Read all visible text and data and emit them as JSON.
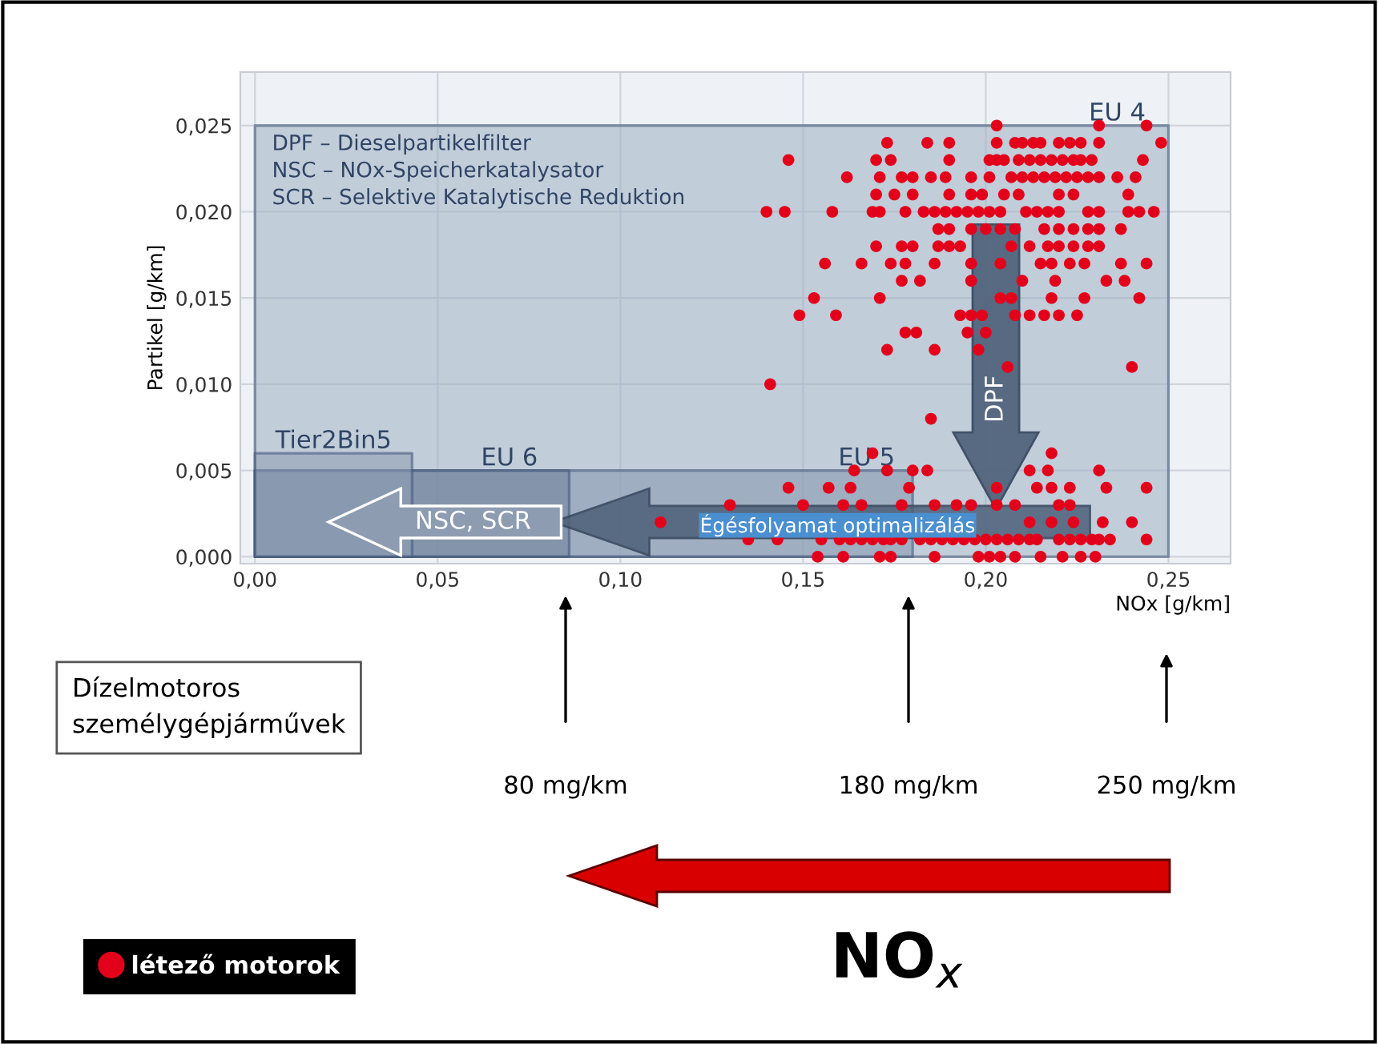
{
  "chart_data": {
    "type": "scatter",
    "xlabel": "NOx [g/km]",
    "ylabel": "Partikel [g/km]",
    "xlim": [
      -0.004,
      0.267
    ],
    "ylim": [
      -0.0004,
      0.0281
    ],
    "xticks": [
      {
        "value": 0,
        "label": "0,00"
      },
      {
        "value": 0.05,
        "label": "0,05"
      },
      {
        "value": 0.1,
        "label": "0,10"
      },
      {
        "value": 0.15,
        "label": "0,15"
      },
      {
        "value": 0.2,
        "label": "0,20"
      },
      {
        "value": 0.25,
        "label": "0,25"
      }
    ],
    "yticks": [
      {
        "value": 0,
        "label": "0,000"
      },
      {
        "value": 0.005,
        "label": "0,005"
      },
      {
        "value": 0.01,
        "label": "0,010"
      },
      {
        "value": 0.015,
        "label": "0,015"
      },
      {
        "value": 0.02,
        "label": "0,020"
      },
      {
        "value": 0.025,
        "label": "0,025"
      }
    ],
    "grid": true,
    "legend": "bottom left",
    "series": [
      {
        "type": "area",
        "name": "EU 4",
        "color": "#9fafc3",
        "x": [
          0,
          0.25
        ],
        "values": [
          0.025,
          0.025
        ]
      },
      {
        "type": "area",
        "name": "EU 5",
        "color": "#8596ad",
        "x": [
          0,
          0.18
        ],
        "values": [
          0.005,
          0.005
        ]
      },
      {
        "type": "area",
        "name": "EU 6",
        "color": "#6d7f98",
        "x": [
          0,
          0.086
        ],
        "values": [
          0.005,
          0.005
        ]
      },
      {
        "type": "area",
        "name": "Tier2Bin5",
        "color": "#8e9db3",
        "x": [
          0,
          0.043
        ],
        "values": [
          0.006,
          0.006
        ]
      },
      {
        "name": "létező motorok",
        "color": "#e3001b",
        "marker": "circle",
        "x": [
          0.203,
          0.231,
          0.244,
          0.173,
          0.184,
          0.19,
          0.203,
          0.208,
          0.21,
          0.213,
          0.215,
          0.22,
          0.223,
          0.226,
          0.231,
          0.248,
          0.146,
          0.17,
          0.174,
          0.19,
          0.201,
          0.203,
          0.205,
          0.209,
          0.212,
          0.215,
          0.218,
          0.221,
          0.224,
          0.226,
          0.229,
          0.243,
          0.162,
          0.171,
          0.177,
          0.18,
          0.185,
          0.189,
          0.196,
          0.201,
          0.207,
          0.21,
          0.213,
          0.216,
          0.219,
          0.222,
          0.225,
          0.228,
          0.231,
          0.236,
          0.241,
          0.17,
          0.175,
          0.18,
          0.19,
          0.196,
          0.199,
          0.205,
          0.209,
          0.22,
          0.224,
          0.239,
          0.14,
          0.145,
          0.158,
          0.169,
          0.171,
          0.178,
          0.183,
          0.186,
          0.189,
          0.192,
          0.195,
          0.198,
          0.201,
          0.204,
          0.211,
          0.214,
          0.217,
          0.22,
          0.228,
          0.231,
          0.239,
          0.242,
          0.246,
          0.187,
          0.19,
          0.196,
          0.2,
          0.204,
          0.208,
          0.216,
          0.22,
          0.224,
          0.228,
          0.231,
          0.237,
          0.17,
          0.177,
          0.18,
          0.187,
          0.19,
          0.193,
          0.207,
          0.212,
          0.217,
          0.22,
          0.224,
          0.228,
          0.231,
          0.156,
          0.166,
          0.174,
          0.178,
          0.186,
          0.196,
          0.204,
          0.215,
          0.218,
          0.223,
          0.227,
          0.237,
          0.244,
          0.177,
          0.182,
          0.196,
          0.21,
          0.219,
          0.233,
          0.238,
          0.153,
          0.171,
          0.204,
          0.207,
          0.218,
          0.227,
          0.242,
          0.149,
          0.159,
          0.193,
          0.196,
          0.199,
          0.208,
          0.212,
          0.216,
          0.22,
          0.225,
          0.178,
          0.181,
          0.195,
          0.2,
          0.173,
          0.186,
          0.198,
          0.206,
          0.24,
          0.141,
          0.185,
          0.169,
          0.218,
          0.164,
          0.173,
          0.18,
          0.184,
          0.212,
          0.217,
          0.231,
          0.146,
          0.157,
          0.163,
          0.179,
          0.203,
          0.214,
          0.218,
          0.223,
          0.233,
          0.244,
          0.13,
          0.15,
          0.161,
          0.166,
          0.177,
          0.186,
          0.192,
          0.196,
          0.203,
          0.208,
          0.22,
          0.223,
          0.111,
          0.212,
          0.218,
          0.224,
          0.232,
          0.24,
          0.135,
          0.143,
          0.155,
          0.16,
          0.163,
          0.166,
          0.169,
          0.172,
          0.174,
          0.177,
          0.182,
          0.185,
          0.188,
          0.191,
          0.194,
          0.197,
          0.2,
          0.203,
          0.206,
          0.209,
          0.212,
          0.214,
          0.22,
          0.223,
          0.226,
          0.229,
          0.231,
          0.234,
          0.244,
          0.154,
          0.161,
          0.171,
          0.174,
          0.186,
          0.198,
          0.201,
          0.204,
          0.208,
          0.215,
          0.221,
          0.226,
          0.23
        ],
        "values": [
          0.025,
          0.025,
          0.025,
          0.024,
          0.024,
          0.024,
          0.024,
          0.024,
          0.024,
          0.024,
          0.024,
          0.024,
          0.024,
          0.024,
          0.024,
          0.024,
          0.023,
          0.023,
          0.023,
          0.023,
          0.023,
          0.023,
          0.023,
          0.023,
          0.023,
          0.023,
          0.023,
          0.023,
          0.023,
          0.023,
          0.023,
          0.023,
          0.022,
          0.022,
          0.022,
          0.022,
          0.022,
          0.022,
          0.022,
          0.022,
          0.022,
          0.022,
          0.022,
          0.022,
          0.022,
          0.022,
          0.022,
          0.022,
          0.022,
          0.022,
          0.022,
          0.021,
          0.021,
          0.021,
          0.021,
          0.021,
          0.021,
          0.021,
          0.021,
          0.021,
          0.021,
          0.021,
          0.02,
          0.02,
          0.02,
          0.02,
          0.02,
          0.02,
          0.02,
          0.02,
          0.02,
          0.02,
          0.02,
          0.02,
          0.02,
          0.02,
          0.02,
          0.02,
          0.02,
          0.02,
          0.02,
          0.02,
          0.02,
          0.02,
          0.02,
          0.019,
          0.019,
          0.019,
          0.019,
          0.019,
          0.019,
          0.019,
          0.019,
          0.019,
          0.019,
          0.019,
          0.019,
          0.018,
          0.018,
          0.018,
          0.018,
          0.018,
          0.018,
          0.018,
          0.018,
          0.018,
          0.018,
          0.018,
          0.018,
          0.018,
          0.017,
          0.017,
          0.017,
          0.017,
          0.017,
          0.017,
          0.017,
          0.017,
          0.017,
          0.017,
          0.017,
          0.017,
          0.017,
          0.016,
          0.016,
          0.016,
          0.016,
          0.016,
          0.016,
          0.016,
          0.015,
          0.015,
          0.015,
          0.015,
          0.015,
          0.015,
          0.015,
          0.014,
          0.014,
          0.014,
          0.014,
          0.014,
          0.014,
          0.014,
          0.014,
          0.014,
          0.014,
          0.013,
          0.013,
          0.013,
          0.013,
          0.012,
          0.012,
          0.012,
          0.011,
          0.011,
          0.01,
          0.008,
          0.006,
          0.006,
          0.005,
          0.005,
          0.005,
          0.005,
          0.005,
          0.005,
          0.005,
          0.004,
          0.004,
          0.004,
          0.004,
          0.004,
          0.004,
          0.004,
          0.004,
          0.004,
          0.004,
          0.003,
          0.003,
          0.003,
          0.003,
          0.003,
          0.003,
          0.003,
          0.003,
          0.003,
          0.003,
          0.003,
          0.003,
          0.002,
          0.002,
          0.002,
          0.002,
          0.002,
          0.002,
          0.001,
          0.001,
          0.001,
          0.001,
          0.001,
          0.001,
          0.001,
          0.001,
          0.001,
          0.001,
          0.001,
          0.001,
          0.001,
          0.001,
          0.001,
          0.001,
          0.001,
          0.001,
          0.001,
          0.001,
          0.001,
          0.001,
          0.001,
          0.001,
          0.001,
          0.001,
          0.001,
          0.001,
          0.001,
          0,
          0,
          0,
          0,
          0,
          0,
          0,
          0,
          0,
          0,
          0,
          0,
          0
        ]
      }
    ],
    "annotations": [
      "DPF – Dieselpartikelfilter",
      "NSC – NOx-Speicherkatalysator",
      "SCR – Selektive Katalytische Reduktion",
      "DPF",
      "Égésfolyamat optimalizálás",
      "NSC, SCR",
      "Dízelmotoros\nszemélygépjárművek",
      "80 mg/km",
      "180 mg/km",
      "250 mg/km",
      "NO$_{x}$"
    ]
  }
}
